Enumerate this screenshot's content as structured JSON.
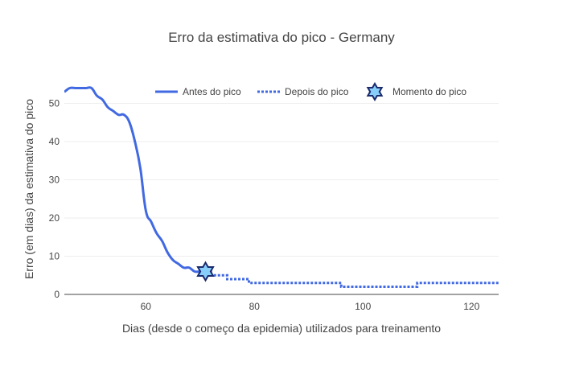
{
  "chart_data": {
    "type": "line",
    "title": "Erro da estimativa do pico - Germany",
    "xlabel": "Dias (desde o começo da epidemia) utilizados para treinamento",
    "ylabel": "Erro (em dias) da estimativa do pico",
    "xlim": [
      45,
      125
    ],
    "ylim": [
      0,
      56
    ],
    "xticks": [
      60,
      80,
      100,
      120
    ],
    "yticks": [
      0,
      10,
      20,
      30,
      40,
      50
    ],
    "grid": true,
    "legend_position": "top-right",
    "colors": {
      "line": "#4169e1",
      "marker_fill": "#87cefa",
      "marker_outline": "#1a2a6c"
    },
    "series": [
      {
        "name": "Antes do pico",
        "style": "solid",
        "x": [
          45,
          46,
          47,
          48,
          49,
          50,
          51,
          52,
          53,
          54,
          55,
          56,
          57,
          58,
          59,
          60,
          61,
          62,
          63,
          64,
          65,
          66,
          67,
          68,
          69,
          70,
          71
        ],
        "y": [
          53,
          54,
          54,
          54,
          54,
          54,
          52,
          51,
          49,
          48,
          47,
          47,
          45,
          40,
          33,
          22,
          19,
          16,
          14,
          11,
          9,
          8,
          7,
          7,
          6,
          6,
          6
        ]
      },
      {
        "name": "Depois do pico",
        "style": "dotted",
        "x": [
          71,
          72,
          73,
          74,
          75,
          76,
          77,
          78,
          79,
          80,
          85,
          90,
          94,
          95,
          96,
          100,
          105,
          108,
          109,
          110,
          115,
          120,
          125
        ],
        "y": [
          6,
          5,
          5,
          5,
          4,
          4,
          4,
          4,
          3,
          3,
          3,
          3,
          3,
          3,
          2,
          2,
          2,
          2,
          2,
          3,
          3,
          3,
          3
        ]
      },
      {
        "name": "Momento do pico",
        "style": "marker",
        "x": [
          71
        ],
        "y": [
          6
        ]
      }
    ]
  }
}
